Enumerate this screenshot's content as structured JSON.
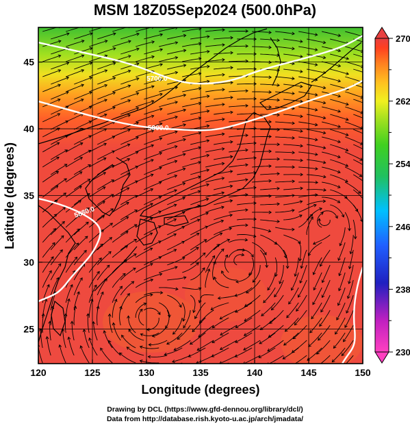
{
  "title": "MSM 18Z05Sep2024 (500.0hPa)",
  "x_axis": {
    "label": "Longitude (degrees)",
    "ticks": [
      "120",
      "125",
      "130",
      "135",
      "140",
      "145",
      "150"
    ],
    "range": [
      120,
      150
    ]
  },
  "y_axis": {
    "label": "Latitude  (degrees)",
    "ticks": [
      "25",
      "30",
      "35",
      "40",
      "45"
    ],
    "range": [
      22.4,
      47.6
    ]
  },
  "colorbar": {
    "ticks": [
      "270",
      "262",
      "254",
      "246",
      "238",
      "230"
    ],
    "range": [
      230,
      270
    ],
    "colors": [
      "#ff40c0",
      "#c020c0",
      "#2020c0",
      "#2060ff",
      "#00c0ff",
      "#20c060",
      "#40d020",
      "#a0e020",
      "#f0f020",
      "#ffc020",
      "#ff8020",
      "#ff4020",
      "#e84040"
    ]
  },
  "contours": [
    {
      "label": "5700.0",
      "lat_at": [
        46.2,
        45.6,
        44.5,
        44.5,
        45.4,
        46.7,
        47.6
      ]
    },
    {
      "label": "5800.0",
      "lat_at": [
        42.8,
        42.0,
        40.6,
        40.5,
        41.2,
        42.4,
        43.8
      ]
    },
    {
      "label": "5880.0",
      "lat_at": []
    }
  ],
  "footer": {
    "line1": "Drawing by DCL (https://www.gfd-dennou.org/library/dcl/)",
    "line2": "Data from http://database.rish.kyoto-u.ac.jp/arch/jmadata/"
  }
}
